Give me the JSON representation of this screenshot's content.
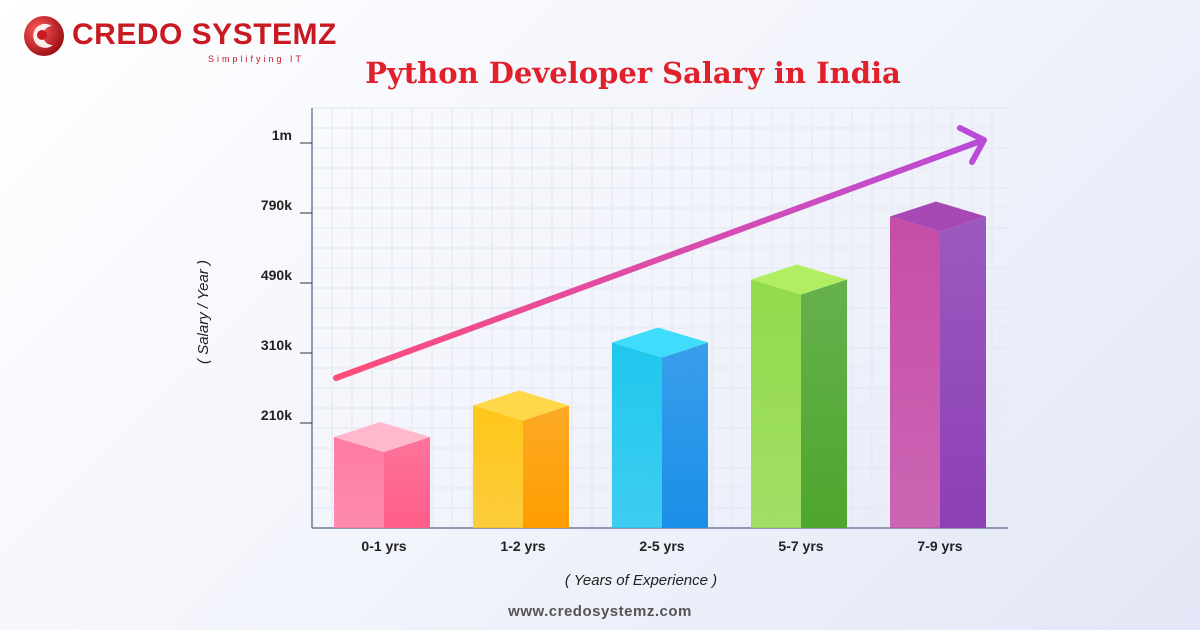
{
  "brand": {
    "name": "CREDO SYSTEMZ",
    "tagline": "Simplifying IT",
    "website": "www.credosystemz.com",
    "color": "#c81a22"
  },
  "chart_data": {
    "type": "bar",
    "title": "Python Developer Salary in India",
    "xlabel": "( Years of Experience )",
    "ylabel": "( Salary / Year )",
    "categories": [
      "0-1 yrs",
      "1-2 yrs",
      "2-5 yrs",
      "5-7 yrs",
      "7-9 yrs"
    ],
    "y_ticks": [
      "210k",
      "310k",
      "490k",
      "790k",
      "1m"
    ],
    "values": [
      0.8,
      1.25,
      2.15,
      3.05,
      3.95
    ],
    "value_units": "position on the ordinal salary scale (210k = 1, 310k = 2, 490k = 3, 790k = 4, 1m = 5)",
    "ylim": [
      -0.5,
      5.5
    ],
    "trend_arrow": true,
    "grid": true,
    "colors": [
      {
        "front": "#ff7aa1",
        "top": "#ffb8cc",
        "side": "#ff5d8a"
      },
      {
        "front": "#ffc61a",
        "top": "#ffd84a",
        "side": "#ff9d00"
      },
      {
        "front": "#1fc7ee",
        "top": "#40dcfb",
        "side": "#1a8fe8"
      },
      {
        "front": "#93db4c",
        "top": "#b2ee61",
        "side": "#4ea62e"
      },
      {
        "front": "#c64da7",
        "top": "#a748b5",
        "side": "#8d3fb5"
      }
    ],
    "arrow_colors": [
      "#ff4d79",
      "#b94bd8"
    ]
  }
}
